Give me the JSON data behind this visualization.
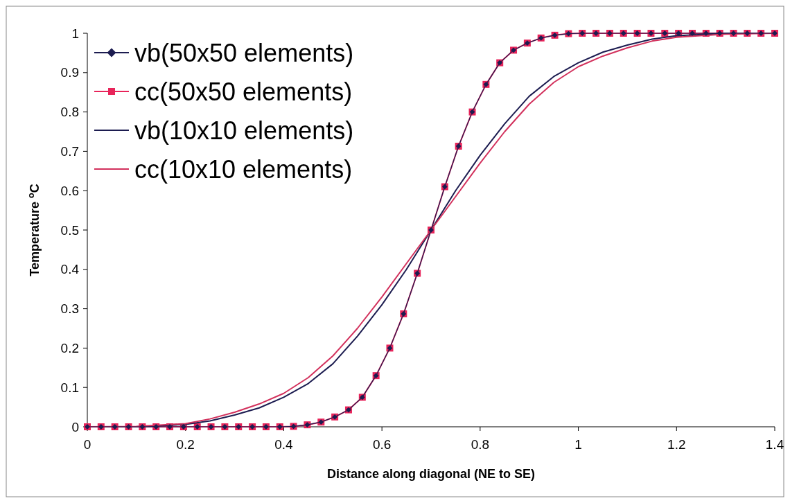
{
  "chart_data": {
    "type": "line",
    "xlabel": "Distance along diagonal (NE to SE)",
    "ylabel": "Temperature $^{o}$C",
    "xlim": [
      0,
      1.4
    ],
    "ylim": [
      0,
      1
    ],
    "xticks": [
      0,
      0.2,
      0.4,
      0.6,
      0.8,
      1,
      1.2,
      1.4
    ],
    "yticks": [
      0,
      0.1,
      0.2,
      0.3,
      0.4,
      0.5,
      0.6,
      0.7,
      0.8,
      0.9,
      1
    ],
    "grid": false,
    "legend": "top left",
    "series": [
      {
        "name": "vb(50x50 elements)",
        "color": "#1c1c50",
        "marker": "diamond",
        "x": [
          0,
          0.028,
          0.056,
          0.084,
          0.112,
          0.14,
          0.168,
          0.196,
          0.224,
          0.252,
          0.28,
          0.308,
          0.336,
          0.364,
          0.392,
          0.42,
          0.448,
          0.476,
          0.504,
          0.532,
          0.56,
          0.588,
          0.616,
          0.644,
          0.672,
          0.7,
          0.728,
          0.756,
          0.784,
          0.812,
          0.84,
          0.868,
          0.896,
          0.924,
          0.952,
          0.98,
          1.008,
          1.036,
          1.064,
          1.092,
          1.12,
          1.148,
          1.176,
          1.204,
          1.232,
          1.26,
          1.288,
          1.316,
          1.344,
          1.372,
          1.4
        ],
        "values": [
          0,
          0,
          0,
          0,
          0,
          0,
          0,
          0,
          0,
          0,
          0,
          0,
          0,
          0,
          0,
          0.001,
          0.005,
          0.012,
          0.025,
          0.043,
          0.075,
          0.13,
          0.2,
          0.287,
          0.39,
          0.5,
          0.61,
          0.713,
          0.8,
          0.87,
          0.925,
          0.957,
          0.975,
          0.988,
          0.995,
          0.999,
          1,
          1,
          1,
          1,
          1,
          1,
          1,
          1,
          1,
          1,
          1,
          1,
          1,
          1,
          1
        ]
      },
      {
        "name": "cc(50x50 elements)",
        "color": "#e8245a",
        "marker": "square",
        "x": [
          0,
          0.028,
          0.056,
          0.084,
          0.112,
          0.14,
          0.168,
          0.196,
          0.224,
          0.252,
          0.28,
          0.308,
          0.336,
          0.364,
          0.392,
          0.42,
          0.448,
          0.476,
          0.504,
          0.532,
          0.56,
          0.588,
          0.616,
          0.644,
          0.672,
          0.7,
          0.728,
          0.756,
          0.784,
          0.812,
          0.84,
          0.868,
          0.896,
          0.924,
          0.952,
          0.98,
          1.008,
          1.036,
          1.064,
          1.092,
          1.12,
          1.148,
          1.176,
          1.204,
          1.232,
          1.26,
          1.288,
          1.316,
          1.344,
          1.372,
          1.4
        ],
        "values": [
          0,
          0,
          0,
          0,
          0,
          0,
          0,
          0,
          0,
          0,
          0,
          0,
          0,
          0,
          0,
          0.001,
          0.005,
          0.012,
          0.025,
          0.043,
          0.075,
          0.13,
          0.2,
          0.287,
          0.39,
          0.5,
          0.61,
          0.713,
          0.8,
          0.87,
          0.925,
          0.957,
          0.975,
          0.988,
          0.995,
          0.999,
          1,
          1,
          1,
          1,
          1,
          1,
          1,
          1,
          1,
          1,
          1,
          1,
          1,
          1,
          1
        ]
      },
      {
        "name": "vb(10x10 elements)",
        "color": "#1c1c50",
        "marker": "none",
        "x": [
          0,
          0.1,
          0.2,
          0.25,
          0.3,
          0.35,
          0.4,
          0.45,
          0.5,
          0.55,
          0.6,
          0.65,
          0.7,
          0.75,
          0.8,
          0.85,
          0.9,
          0.95,
          1,
          1.05,
          1.1,
          1.15,
          1.2,
          1.3,
          1.4
        ],
        "values": [
          0,
          0,
          0.006,
          0.015,
          0.03,
          0.048,
          0.075,
          0.11,
          0.16,
          0.23,
          0.31,
          0.4,
          0.5,
          0.6,
          0.69,
          0.77,
          0.84,
          0.89,
          0.925,
          0.952,
          0.97,
          0.985,
          0.994,
          1,
          1
        ]
      },
      {
        "name": "cc(10x10 elements)",
        "color": "#d2305c",
        "marker": "none",
        "x": [
          0,
          0.1,
          0.2,
          0.25,
          0.3,
          0.35,
          0.4,
          0.45,
          0.5,
          0.55,
          0.6,
          0.65,
          0.7,
          0.75,
          0.8,
          0.85,
          0.9,
          0.95,
          1,
          1.05,
          1.1,
          1.15,
          1.2,
          1.3,
          1.4
        ],
        "values": [
          0,
          0.001,
          0.008,
          0.02,
          0.037,
          0.058,
          0.085,
          0.125,
          0.18,
          0.25,
          0.33,
          0.415,
          0.5,
          0.585,
          0.67,
          0.75,
          0.82,
          0.875,
          0.915,
          0.942,
          0.963,
          0.98,
          0.99,
          0.998,
          1
        ]
      }
    ]
  }
}
